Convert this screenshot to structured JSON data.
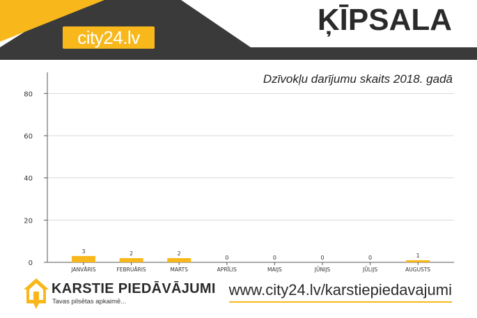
{
  "header": {
    "logo_text": "city24.lv",
    "region": "ĶĪPSALA"
  },
  "colors": {
    "accent": "#f8b81c",
    "dark": "#3a3a3a",
    "bar": "#f8b81c",
    "grid": "#d9d9d9"
  },
  "footer": {
    "brand_name": "KARSTIE PIEDĀVĀJUMI",
    "tagline": "Tavas pilsētas apkaimē...",
    "url": "www.city24.lv/karstiepiedavajumi"
  },
  "chart_data": {
    "type": "bar",
    "title": "Dzīvokļu darījumu skaits 2018. gadā",
    "xlabel": "",
    "ylabel": "",
    "categories": [
      "JANVĀRIS",
      "FEBRUĀRIS",
      "MARTS",
      "APRĪLIS",
      "MAIJS",
      "JŪNIJS",
      "JŪLIJS",
      "AUGUSTS"
    ],
    "values": [
      3,
      2,
      2,
      0,
      0,
      0,
      0,
      1
    ],
    "ylim": [
      0,
      90
    ],
    "yticks": [
      0,
      20,
      40,
      60,
      80
    ],
    "grid": true,
    "legend": "none"
  }
}
